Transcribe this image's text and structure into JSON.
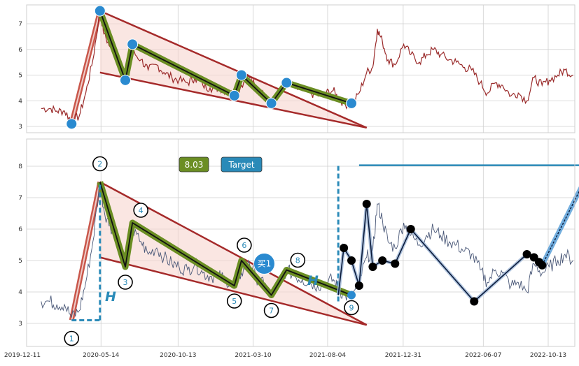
{
  "chart_data": [
    {
      "type": "line",
      "panel": "top",
      "ylim": [
        2.8,
        7.8
      ],
      "yticks": [
        "3",
        "4",
        "5",
        "6",
        "7"
      ],
      "grid": true,
      "price_series": {
        "x": [
          "2020-01-17",
          "2020-02-03",
          "2020-02-17",
          "2020-03-03",
          "2020-03-17",
          "2020-04-01",
          "2020-04-14",
          "2020-04-28",
          "2020-05-12",
          "2020-05-20",
          "2020-06-01",
          "2020-06-15",
          "2020-07-01",
          "2020-07-15",
          "2020-08-01",
          "2020-08-15",
          "2020-09-01",
          "2020-09-15",
          "2020-10-01",
          "2020-10-15",
          "2020-11-01",
          "2020-11-15",
          "2020-12-01",
          "2020-12-15",
          "2021-01-01",
          "2021-01-15",
          "2021-02-01",
          "2021-02-15",
          "2021-03-01",
          "2021-03-15",
          "2021-04-01",
          "2021-04-15",
          "2021-05-01",
          "2021-05-15",
          "2021-06-01",
          "2021-06-15",
          "2021-07-01",
          "2021-07-15",
          "2021-08-01",
          "2021-08-15",
          "2021-08-25",
          "2021-09-05",
          "2021-09-20",
          "2021-10-05",
          "2021-10-20",
          "2021-11-01",
          "2021-11-10",
          "2021-11-20",
          "2021-12-01",
          "2021-12-15",
          "2022-01-01",
          "2022-01-15",
          "2022-02-01",
          "2022-02-15",
          "2022-03-01",
          "2022-03-15",
          "2022-04-01",
          "2022-04-15",
          "2022-05-01",
          "2022-05-15",
          "2022-06-01",
          "2022-06-15",
          "2022-07-01",
          "2022-07-15",
          "2022-08-01",
          "2022-08-15",
          "2022-09-01",
          "2022-09-15",
          "2022-10-01",
          "2022-10-15",
          "2022-11-01",
          "2022-11-15",
          "2022-12-01"
        ],
        "y": [
          3.7,
          3.7,
          3.6,
          3.6,
          3.2,
          3.4,
          4.3,
          5.6,
          7.5,
          6.6,
          6.1,
          5.8,
          4.8,
          5.9,
          5.6,
          5.2,
          5.4,
          5.1,
          4.9,
          4.8,
          4.7,
          4.9,
          4.6,
          4.5,
          4.5,
          4.4,
          4.2,
          4.6,
          5.0,
          4.5,
          4.2,
          3.9,
          4.3,
          4.7,
          4.5,
          4.4,
          4.3,
          4.2,
          4.3,
          4.4,
          4.1,
          3.9,
          3.8,
          4.3,
          5.1,
          5.3,
          6.8,
          6.3,
          5.6,
          5.4,
          6.2,
          5.8,
          5.5,
          5.8,
          6.0,
          5.8,
          5.6,
          5.5,
          5.3,
          5.2,
          4.7,
          4.3,
          4.7,
          4.6,
          4.2,
          4.3,
          4.0,
          4.9,
          4.6,
          4.8,
          5.0,
          5.2,
          5.0
        ]
      },
      "pattern_points": {
        "x": [
          "2020-03-17",
          "2020-05-12",
          "2020-07-01",
          "2020-07-15",
          "2021-02-01",
          "2021-02-15",
          "2021-04-15",
          "2021-05-15",
          "2021-09-20"
        ],
        "y": [
          3.1,
          7.5,
          4.8,
          6.2,
          4.2,
          5.0,
          3.9,
          4.7,
          3.9
        ]
      },
      "channel": {
        "upper": {
          "x": [
            "2020-05-12",
            "2021-10-20"
          ],
          "y": [
            7.5,
            2.95
          ]
        },
        "lower": {
          "x": [
            "2020-05-12",
            "2021-10-20"
          ],
          "y": [
            5.1,
            2.95
          ]
        }
      }
    },
    {
      "type": "line",
      "panel": "bottom",
      "ylim": [
        2.3,
        8.9
      ],
      "yticks": [
        "3",
        "4",
        "5",
        "6",
        "7",
        "8"
      ],
      "xticks": [
        "2019-12-11",
        "2020-05-14",
        "2020-10-13",
        "2021-03-10",
        "2021-08-04",
        "2021-12-31",
        "2022-06-07",
        "2022-10-13"
      ],
      "grid": true,
      "pattern_points": {
        "x": [
          "2020-03-17",
          "2020-05-12",
          "2020-07-01",
          "2020-07-15",
          "2021-02-01",
          "2021-02-15",
          "2021-04-15",
          "2021-05-15",
          "2021-09-20"
        ],
        "y": [
          3.1,
          7.5,
          4.8,
          6.2,
          4.2,
          5.0,
          3.9,
          4.7,
          3.9
        ],
        "labels": [
          "1",
          "2",
          "3",
          "4",
          "5",
          "6",
          "7",
          "8",
          "9"
        ]
      },
      "zigzag_points": {
        "x": [
          "2021-08-25",
          "2021-09-05",
          "2021-09-20",
          "2021-10-05",
          "2021-10-20",
          "2021-11-01",
          "2021-11-20",
          "2021-12-15",
          "2022-01-15",
          "2022-05-20",
          "2022-09-01",
          "2022-09-15",
          "2022-09-25",
          "2022-10-01"
        ],
        "y": [
          3.9,
          5.4,
          5.0,
          4.2,
          6.8,
          4.8,
          5.0,
          4.9,
          6.0,
          3.7,
          5.2,
          5.1,
          4.95,
          4.85
        ]
      },
      "target_line": {
        "x": [
          "2021-10-05",
          "2023-01-08"
        ],
        "y": [
          8.03,
          8.03
        ]
      },
      "labels": {
        "price_badge": "8.03",
        "target_badge": "Target",
        "buy_label": "买1",
        "h_label_left": "H",
        "h_label_right": "H"
      },
      "colors": {
        "price_badge": "#6b8e23",
        "target_badge": "#2a8ab8",
        "channel": "#a52a2a",
        "zigzag": "#6b8e23",
        "target": "#2a8ab8"
      }
    }
  ]
}
